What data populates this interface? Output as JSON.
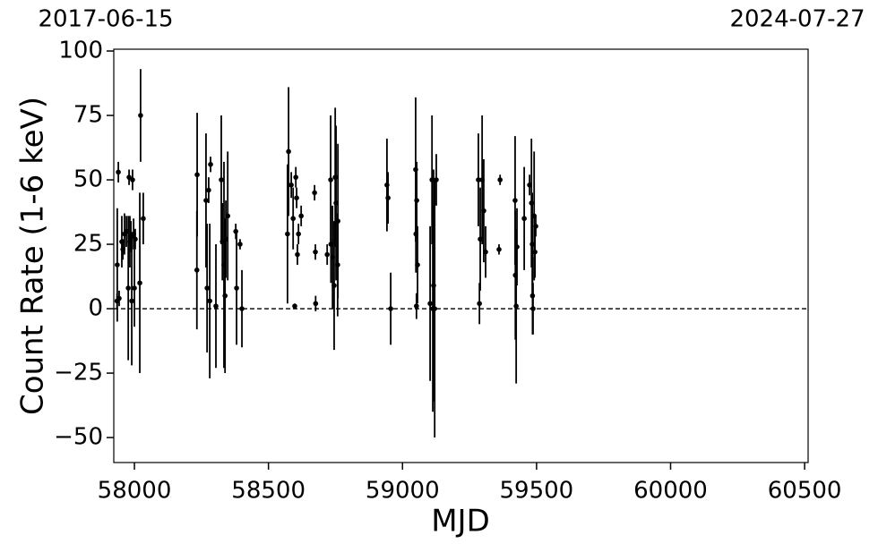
{
  "chart_data": {
    "type": "errorbar",
    "annotations": [
      "2017-06-15",
      "2024-07-27"
    ],
    "xlabel": "MJD",
    "ylabel": "Count Rate (1-6 keV)",
    "xlim": [
      57923,
      60513
    ],
    "ylim": [
      -59.7,
      100.7
    ],
    "xticks": [
      58000,
      58500,
      59000,
      59500,
      60000,
      60500
    ],
    "yticks": [
      {
        "value": -50,
        "label": "−50"
      },
      {
        "value": -25,
        "label": "−25"
      },
      0,
      25,
      50,
      75,
      100
    ],
    "hline": 0,
    "series": [
      {
        "color": "#000000",
        "x": [
          57936,
          57940,
          57935,
          57943,
          57953,
          57957,
          57963,
          57970,
          57977,
          57980,
          57983,
          57987,
          57990,
          57993,
          57997,
          58000,
          58003,
          58020,
          58023,
          58033,
          58234,
          58233,
          58267,
          58271,
          58277,
          58281,
          58284,
          58304,
          58324,
          58328,
          58334,
          58338,
          58341,
          58348,
          58378,
          58381,
          58394,
          58401,
          58575,
          58571,
          58585,
          58592,
          58598,
          58602,
          58605,
          58608,
          58612,
          58622,
          58672,
          58675,
          58676,
          58719,
          58732,
          58733,
          58739,
          58745,
          58749,
          58752,
          58759,
          58758,
          58942,
          58946,
          58956,
          59049,
          59050,
          59053,
          59052,
          59056,
          59103,
          59110,
          59113,
          59116,
          59120,
          59126,
          59283,
          59287,
          59290,
          59297,
          59303,
          59310,
          59364,
          59360,
          59420,
          59421,
          59424,
          59427,
          59454,
          59474,
          59481,
          59484,
          59485,
          59487,
          59491,
          59494,
          59497
        ],
        "values": [
          17,
          53,
          3,
          4,
          26,
          23,
          29,
          30,
          8,
          51,
          26,
          28,
          3,
          50,
          29,
          8,
          27,
          10,
          75,
          35,
          52,
          15,
          42,
          8,
          46,
          3,
          56,
          1,
          50,
          26,
          17,
          5,
          27,
          36,
          30,
          8,
          25,
          0,
          61,
          29,
          48,
          35,
          1,
          51,
          43,
          21,
          29,
          36,
          45,
          22,
          2,
          21,
          50,
          25,
          20,
          9,
          51,
          41,
          34,
          17,
          48,
          43,
          0,
          54,
          29,
          42,
          1,
          17,
          2,
          50,
          0,
          9,
          0,
          50,
          50,
          2,
          27,
          50,
          38,
          22,
          50,
          23,
          42,
          13,
          1,
          24,
          35,
          48,
          41,
          25,
          5,
          0,
          36,
          22,
          32
        ],
        "errors": [
          22,
          4,
          3,
          3,
          10,
          4,
          8,
          6,
          28,
          3,
          10,
          6,
          25,
          4,
          6,
          15,
          4,
          35,
          18,
          10,
          24,
          23,
          26,
          25,
          5,
          30,
          3,
          24,
          25,
          15,
          40,
          30,
          15,
          25,
          3,
          22,
          2,
          15,
          25,
          27,
          5,
          12,
          1,
          4,
          4,
          4,
          4,
          4,
          3,
          3,
          3,
          4,
          25,
          15,
          20,
          25,
          27,
          30,
          30,
          20,
          18,
          10,
          14,
          28,
          15,
          15,
          5,
          15,
          30,
          25,
          40,
          45,
          50,
          10,
          18,
          8,
          20,
          25,
          20,
          10,
          2,
          2,
          25,
          25,
          30,
          15,
          20,
          4,
          25,
          20,
          15,
          10,
          25,
          10,
          4
        ]
      }
    ]
  }
}
